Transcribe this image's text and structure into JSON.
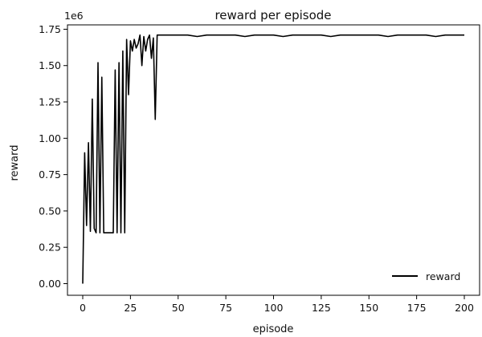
{
  "chart_data": {
    "type": "line",
    "title": "reward per episode",
    "xlabel": "episode",
    "ylabel": "reward",
    "offset_text": "1e6",
    "xlim": [
      -8,
      208
    ],
    "ylim": [
      -0.08,
      1.78
    ],
    "x_ticks": [
      0,
      25,
      50,
      75,
      100,
      125,
      150,
      175,
      200
    ],
    "y_ticks": [
      0.0,
      0.25,
      0.5,
      0.75,
      1.0,
      1.25,
      1.5,
      1.75
    ],
    "x_tick_labels": [
      "0",
      "25",
      "50",
      "75",
      "100",
      "125",
      "150",
      "175",
      "200"
    ],
    "y_tick_labels": [
      "0.00",
      "0.25",
      "0.50",
      "0.75",
      "1.00",
      "1.25",
      "1.50",
      "1.75"
    ],
    "grid": false,
    "legend_position": "bottom-right",
    "series": [
      {
        "name": "reward",
        "color": "#000000",
        "x": [
          0,
          1,
          2,
          3,
          4,
          5,
          6,
          7,
          8,
          9,
          10,
          11,
          12,
          13,
          14,
          15,
          16,
          17,
          18,
          19,
          20,
          21,
          22,
          23,
          24,
          25,
          26,
          27,
          28,
          29,
          30,
          31,
          32,
          33,
          34,
          35,
          36,
          37,
          38,
          39,
          40,
          45,
          50,
          55,
          60,
          65,
          70,
          75,
          80,
          85,
          90,
          95,
          100,
          105,
          110,
          115,
          120,
          125,
          130,
          135,
          140,
          145,
          150,
          155,
          160,
          165,
          170,
          175,
          180,
          185,
          190,
          195,
          200
        ],
        "values": [
          0.0,
          0.9,
          0.4,
          0.97,
          0.36,
          1.27,
          0.38,
          0.35,
          1.52,
          0.35,
          1.42,
          0.35,
          0.35,
          0.35,
          0.35,
          0.35,
          0.35,
          1.47,
          0.35,
          1.52,
          0.35,
          1.6,
          0.35,
          1.68,
          1.3,
          1.67,
          1.6,
          1.68,
          1.62,
          1.65,
          1.71,
          1.5,
          1.7,
          1.6,
          1.68,
          1.71,
          1.55,
          1.69,
          1.13,
          1.71,
          1.71,
          1.71,
          1.71,
          1.71,
          1.7,
          1.71,
          1.71,
          1.71,
          1.71,
          1.7,
          1.71,
          1.71,
          1.71,
          1.7,
          1.71,
          1.71,
          1.71,
          1.71,
          1.7,
          1.71,
          1.71,
          1.71,
          1.71,
          1.71,
          1.7,
          1.71,
          1.71,
          1.71,
          1.71,
          1.7,
          1.71,
          1.71,
          1.71
        ]
      }
    ]
  }
}
